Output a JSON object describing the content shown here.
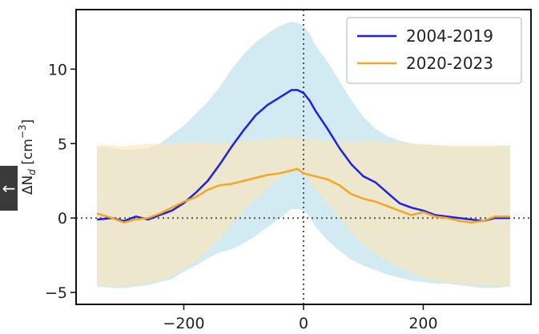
{
  "nav": {
    "back_icon": "arrow-left-icon",
    "back_glyph": "←"
  },
  "chart_data": {
    "type": "line",
    "title": "",
    "xlabel": "",
    "ylabel": "ΔN",
    "ylabel_sub": "d",
    "ylabel_unit": " [cm",
    "ylabel_exp": "−3",
    "ylabel_close": "]",
    "xlim": [
      -380,
      380
    ],
    "ylim": [
      -5.8,
      14.0
    ],
    "x_ticks": [
      {
        "value": -200,
        "label": "−200"
      },
      {
        "value": 0,
        "label": "0"
      },
      {
        "value": 200,
        "label": "200"
      }
    ],
    "y_ticks": [
      {
        "value": -5,
        "label": "−5"
      },
      {
        "value": 0,
        "label": "0"
      },
      {
        "value": 5,
        "label": "5"
      },
      {
        "value": 10,
        "label": "10"
      }
    ],
    "reference_lines": {
      "x": 0,
      "y": 0,
      "style": "dotted"
    },
    "legend": {
      "placement": "top-right"
    },
    "grid": false,
    "colors": {
      "series_1": "#1f1fe6",
      "series_2": "#f5a623",
      "band_1": "#add8e6",
      "band_2": "#ffe4b5",
      "axes": "#111111",
      "ref": "#555555"
    },
    "x": [
      -345,
      -320,
      -300,
      -280,
      -260,
      -240,
      -220,
      -200,
      -180,
      -160,
      -140,
      -120,
      -100,
      -80,
      -60,
      -40,
      -20,
      -10,
      0,
      10,
      20,
      40,
      60,
      80,
      100,
      120,
      140,
      160,
      180,
      200,
      220,
      240,
      260,
      280,
      300,
      320,
      345
    ],
    "series": [
      {
        "name": "2004-2019",
        "values": [
          -0.1,
          0.0,
          -0.2,
          0.1,
          -0.1,
          0.2,
          0.5,
          1.0,
          1.7,
          2.5,
          3.6,
          4.8,
          5.9,
          6.9,
          7.6,
          8.1,
          8.6,
          8.6,
          8.4,
          7.9,
          7.2,
          6.0,
          4.7,
          3.6,
          2.8,
          2.4,
          1.7,
          1.0,
          0.7,
          0.5,
          0.2,
          0.1,
          0.0,
          -0.1,
          -0.2,
          0.0,
          0.0
        ],
        "band_upper": [
          4.8,
          4.7,
          4.6,
          4.6,
          4.7,
          5.0,
          5.6,
          6.2,
          7.0,
          7.8,
          8.8,
          10.0,
          11.0,
          11.8,
          12.4,
          12.9,
          13.2,
          13.1,
          12.9,
          12.4,
          11.6,
          10.5,
          9.2,
          7.9,
          6.8,
          6.0,
          5.5,
          5.2,
          5.0,
          4.9,
          4.9,
          4.8,
          4.8,
          4.8,
          4.8,
          4.8,
          4.9
        ],
        "band_lower": [
          -4.6,
          -4.7,
          -4.7,
          -4.6,
          -4.5,
          -4.3,
          -4.1,
          -3.6,
          -3.2,
          -2.7,
          -2.3,
          -2.1,
          -1.7,
          -1.2,
          -0.6,
          0.0,
          0.6,
          0.6,
          0.5,
          0.1,
          -0.6,
          -1.5,
          -2.2,
          -2.8,
          -3.2,
          -3.5,
          -3.8,
          -4.0,
          -4.2,
          -4.3,
          -4.4,
          -4.4,
          -4.5,
          -4.6,
          -4.7,
          -4.7,
          -4.6
        ]
      },
      {
        "name": "2020-2023",
        "values": [
          0.3,
          0.0,
          -0.3,
          -0.1,
          0.0,
          0.3,
          0.7,
          1.1,
          1.4,
          1.9,
          2.2,
          2.3,
          2.5,
          2.7,
          2.9,
          3.0,
          3.2,
          3.3,
          3.0,
          2.9,
          2.8,
          2.6,
          2.2,
          1.6,
          1.3,
          1.1,
          0.8,
          0.5,
          0.2,
          0.4,
          0.1,
          0.0,
          -0.2,
          -0.3,
          -0.2,
          0.1,
          0.1
        ],
        "band_upper": [
          4.9,
          4.9,
          4.8,
          4.9,
          5.0,
          5.0,
          5.0,
          5.1,
          5.1,
          5.1,
          5.0,
          5.1,
          5.2,
          5.2,
          5.3,
          5.4,
          5.4,
          5.4,
          5.3,
          5.3,
          5.3,
          5.2,
          5.2,
          5.1,
          5.2,
          5.2,
          5.1,
          5.1,
          5.0,
          5.0,
          4.9,
          4.9,
          4.9,
          4.9,
          4.9,
          4.9,
          4.9
        ],
        "band_lower": [
          -4.5,
          -4.6,
          -4.6,
          -4.5,
          -4.4,
          -4.2,
          -3.9,
          -3.4,
          -2.9,
          -2.2,
          -1.4,
          -0.4,
          0.5,
          1.3,
          2.0,
          2.7,
          3.2,
          3.2,
          2.9,
          2.4,
          1.9,
          1.0,
          0.0,
          -1.0,
          -1.8,
          -2.4,
          -2.9,
          -3.3,
          -3.7,
          -4.0,
          -4.2,
          -4.3,
          -4.4,
          -4.5,
          -4.5,
          -4.6,
          -4.6
        ]
      }
    ]
  }
}
